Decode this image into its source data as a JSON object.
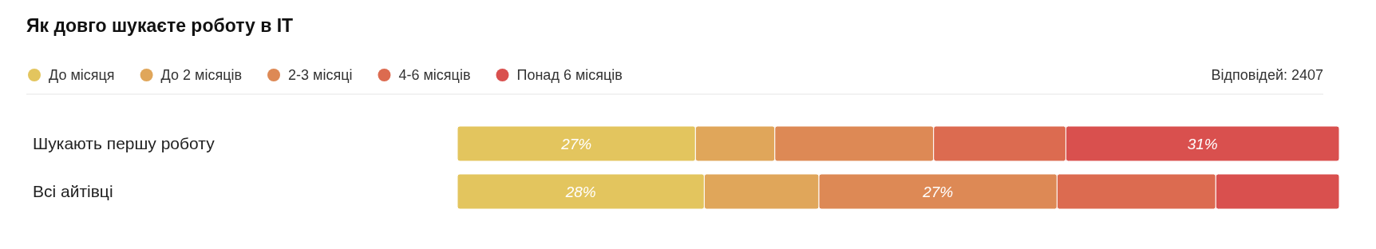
{
  "chart_data": {
    "type": "bar",
    "orientation": "horizontal",
    "stacked": true,
    "title": "Як довго шукаєте роботу в IT",
    "annotations": [
      "Відповідей: 2407"
    ],
    "categories": [
      "Шукають першу роботу",
      "Всі айтівці"
    ],
    "xlim": [
      0,
      100
    ],
    "tick_labels": "y",
    "legend": "top left",
    "series": [
      {
        "name": "До місяця",
        "color": "#e3c55e",
        "values": [
          27,
          28
        ],
        "value_labels": [
          "27%",
          "28%"
        ]
      },
      {
        "name": "До 2 місяців",
        "color": "#e0a65a",
        "values": [
          9,
          13
        ],
        "value_labels": [
          null,
          null
        ]
      },
      {
        "name": "2-3 місяці",
        "color": "#dd8955",
        "values": [
          18,
          27
        ],
        "value_labels": [
          null,
          "27%"
        ]
      },
      {
        "name": "4-6 місяців",
        "color": "#dc6b50",
        "values": [
          15,
          18
        ],
        "value_labels": [
          null,
          null
        ]
      },
      {
        "name": "Понад 6 місяців",
        "color": "#d9504e",
        "values": [
          31,
          14
        ],
        "value_labels": [
          "31%",
          null
        ]
      }
    ]
  }
}
